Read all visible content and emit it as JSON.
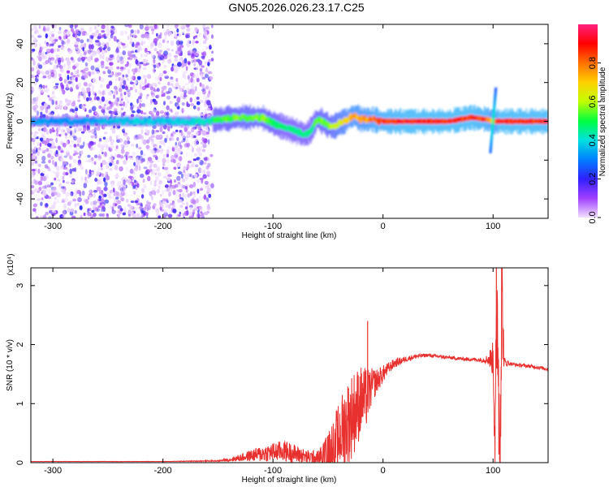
{
  "title": "GN05.2026.026.23.17.C25",
  "chart_data": [
    {
      "type": "heatmap",
      "xlabel": "Height of straight line (km)",
      "ylabel": "Frequency (Hz)",
      "xlim": [
        -320,
        150
      ],
      "ylim": [
        -50,
        50
      ],
      "xticks": [
        -300,
        -200,
        -100,
        0,
        100
      ],
      "yticks": [
        -40,
        -20,
        0,
        20,
        40
      ],
      "xtick_labels": [
        "-300",
        "-200",
        "-100",
        "0",
        "100"
      ],
      "ytick_labels": [
        "-40",
        "-20",
        "0",
        "20",
        "40"
      ],
      "colorbar": {
        "label": "Normalized spectral amplitude",
        "range": [
          0,
          1
        ],
        "ticks": [
          0.0,
          0.2,
          0.4,
          0.6,
          0.8
        ],
        "tick_labels": [
          "0.0",
          "0.2",
          "0.4",
          "0.6",
          "0.8"
        ],
        "colormap": [
          "#f0e0ff",
          "#a040ff",
          "#3020ff",
          "#0080ff",
          "#00e0e0",
          "#00ff40",
          "#c0ff00",
          "#ffd000",
          "#ff7000",
          "#ff0000",
          "#ff2080"
        ]
      },
      "ridge": {
        "x": [
          -320,
          -280,
          -240,
          -200,
          -160,
          -150,
          -130,
          -110,
          -100,
          -90,
          -80,
          -70,
          -65,
          -60,
          -55,
          -50,
          -45,
          -40,
          -35,
          -30,
          -25,
          -20,
          -10,
          0,
          20,
          60,
          80,
          95,
          100,
          105,
          150
        ],
        "y": [
          0,
          0,
          0,
          0,
          0,
          1,
          2,
          2,
          -1,
          -3,
          -5,
          -7,
          -4,
          1,
          0,
          -2,
          -3,
          -1,
          0,
          2,
          3,
          1,
          1,
          0,
          0,
          0,
          2,
          1,
          0,
          0,
          0
        ],
        "amplitude": [
          0.35,
          0.35,
          0.4,
          0.4,
          0.45,
          0.55,
          0.6,
          0.6,
          0.55,
          0.5,
          0.5,
          0.5,
          0.5,
          0.6,
          0.6,
          0.6,
          0.65,
          0.7,
          0.75,
          0.8,
          0.8,
          0.8,
          0.85,
          0.9,
          0.95,
          0.95,
          0.95,
          0.9,
          0.7,
          0.95,
          0.95
        ]
      }
    },
    {
      "type": "line",
      "xlabel": "Height of straight line (km)",
      "ylabel": "SNR (10 * v/v)",
      "y_multiplier": "(x10⁴)",
      "xlim": [
        -320,
        150
      ],
      "ylim": [
        0,
        3.3
      ],
      "xticks": [
        -300,
        -200,
        -100,
        0,
        100
      ],
      "yticks": [
        0,
        1,
        2,
        3
      ],
      "xtick_labels": [
        "-300",
        "-200",
        "-100",
        "0",
        "100"
      ],
      "ytick_labels": [
        "0",
        "1",
        "2",
        "3"
      ],
      "line_color": "#e8312f",
      "series": [
        {
          "x": [
            -320,
            -200,
            -150,
            -140,
            -130,
            -120,
            -110,
            -100,
            -90,
            -80,
            -70,
            -60,
            -50,
            -45,
            -40,
            -35,
            -30,
            -25,
            -20,
            -15,
            -10,
            -5,
            0,
            5,
            10,
            20,
            30,
            40,
            50,
            60,
            70,
            80,
            90,
            95,
            100,
            102,
            104,
            106,
            108,
            110,
            115,
            120,
            130,
            140,
            150
          ],
          "y": [
            0.02,
            0.02,
            0.03,
            0.05,
            0.08,
            0.12,
            0.15,
            0.18,
            0.2,
            0.15,
            0.1,
            0.08,
            0.15,
            0.3,
            0.45,
            0.6,
            0.75,
            0.9,
            1.05,
            1.1,
            1.3,
            1.4,
            1.5,
            1.6,
            1.68,
            1.75,
            1.8,
            1.82,
            1.8,
            1.78,
            1.76,
            1.75,
            1.74,
            1.75,
            1.76,
            0.4,
            2.8,
            0.1,
            2.9,
            1.7,
            1.68,
            1.66,
            1.64,
            1.62,
            1.58
          ],
          "noise": [
            0.002,
            0.002,
            0.01,
            0.03,
            0.06,
            0.1,
            0.14,
            0.16,
            0.18,
            0.16,
            0.12,
            0.12,
            0.35,
            0.5,
            0.6,
            0.7,
            0.75,
            0.7,
            0.6,
            0.5,
            0.3,
            0.2,
            0.15,
            0.1,
            0.08,
            0.05,
            0.04,
            0.03,
            0.03,
            0.03,
            0.03,
            0.03,
            0.04,
            0.08,
            0.3,
            1.2,
            1.2,
            1.2,
            1.2,
            0.1,
            0.03,
            0.03,
            0.03,
            0.03,
            0.03
          ],
          "annotations": [
            {
              "x": -14,
              "y": 2.4
            },
            {
              "x": 103,
              "y": 3.3
            },
            {
              "x": 108,
              "y": 3.15
            },
            {
              "x": 106,
              "y": 0.05
            }
          ]
        }
      ]
    }
  ]
}
